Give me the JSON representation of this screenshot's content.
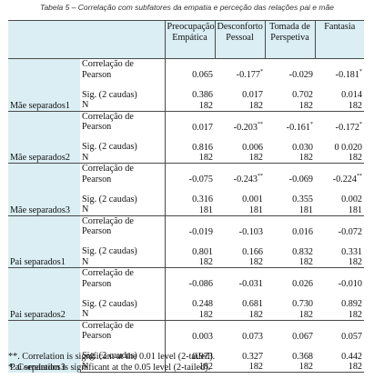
{
  "caption": "Tabela 5 – Correlação com subfatores da empatia e perceção das relações pai e mãe",
  "headers": [
    "Preocupação Empática",
    "Desconforto Pessoal",
    "Tomada de Perspetiva",
    "Fantasia"
  ],
  "row_labels": {
    "pearson": "Correlação de Pearson",
    "sig": "Sig. (2 caudas)",
    "n": "N"
  },
  "groups": [
    {
      "name": "Mãe separados1",
      "pearson": [
        "0.065",
        "-0.177*",
        "-0.029",
        "-0.181*"
      ],
      "sig": [
        "0.386",
        "0.017",
        "0.702",
        "0.014"
      ],
      "n": [
        "182",
        "182",
        "182",
        "182"
      ]
    },
    {
      "name": "Mãe separados2",
      "pearson": [
        "0.017",
        "-0.203**",
        "-0.161*",
        "-0.172*"
      ],
      "sig": [
        "0.816",
        "0.006",
        "0.030",
        "0 0.020"
      ],
      "n": [
        "182",
        "182",
        "182",
        "182"
      ]
    },
    {
      "name": "Mãe separados3",
      "pearson": [
        "-0.075",
        "-0.243**",
        "-0.069",
        "-0.224**"
      ],
      "sig": [
        "0.316",
        "0.001",
        "0.355",
        "0.002"
      ],
      "n": [
        "181",
        "181",
        "181",
        "181"
      ]
    },
    {
      "name": "Pai separados1",
      "pearson": [
        "-0.019",
        "-0.103",
        "0.016",
        "-0.072"
      ],
      "sig": [
        "0.801",
        "0.166",
        "0.832",
        "0.331"
      ],
      "n": [
        "182",
        "182",
        "182",
        "182"
      ]
    },
    {
      "name": "Pai separados2",
      "pearson": [
        "-0.086",
        "-0.031",
        "0.026",
        "-0.010"
      ],
      "sig": [
        "0.248",
        "0.681",
        "0.730",
        "0.892"
      ],
      "n": [
        "182",
        "182",
        "182",
        "182"
      ]
    },
    {
      "name": "Pai separados3",
      "pearson": [
        "0.003",
        "0.073",
        "0.067",
        "0.057"
      ],
      "sig": [
        "0.973",
        "0.327",
        "0.368",
        "0.442"
      ],
      "n": [
        "182",
        "182",
        "182",
        "182"
      ]
    }
  ],
  "footnotes": [
    "**. Correlation is significant at the 0.01 level (2-tailed).",
    "*. Correlation is significant at the 0.05 level (2-tailed)."
  ],
  "colors": {
    "header_bg": "#daeef3",
    "rule": "#4a4a4a"
  }
}
